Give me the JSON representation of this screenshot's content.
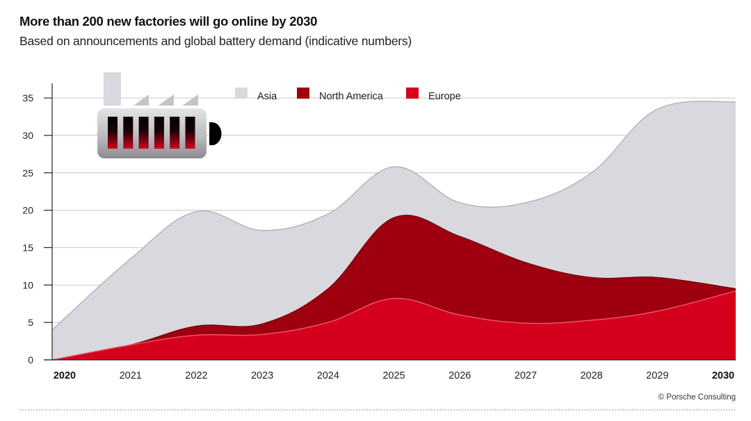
{
  "header": {
    "title": "More than 200 new factories will go online by 2030",
    "subtitle": "Based on announcements and global battery demand (indicative numbers)"
  },
  "footer": {
    "credit": "© Porsche Consulting"
  },
  "illustration": {
    "icon": "battery-factory-icon"
  },
  "colors": {
    "asia": "#d9d8de",
    "north_america": "#9e0010",
    "europe": "#d5001c",
    "gridline": "#cccccc",
    "axis": "#222222"
  },
  "chart_data": {
    "type": "area",
    "stacked": true,
    "title": "More than 200 new factories will go online by 2030",
    "subtitle": "Based on announcements and global battery demand (indicative numbers)",
    "xlabel": "",
    "ylabel": "",
    "categories": [
      "2020",
      "2021",
      "2022",
      "2023",
      "2024",
      "2025",
      "2026",
      "2027",
      "2028",
      "2029",
      "2030"
    ],
    "bold_categories": [
      "2020",
      "2030"
    ],
    "yticks": [
      0,
      5,
      10,
      15,
      20,
      25,
      30,
      35
    ],
    "ylim": [
      0,
      37
    ],
    "grid": true,
    "legend_position": "top-center",
    "series": [
      {
        "name": "Europe",
        "color": "#d5001c",
        "values": [
          0,
          2,
          3.3,
          3.4,
          5,
          8.2,
          6,
          4.9,
          5.3,
          6.5,
          9.2
        ]
      },
      {
        "name": "North America",
        "color": "#9e0010",
        "values": [
          0,
          0,
          1.2,
          1.4,
          4.5,
          10.8,
          10.5,
          8.1,
          5.7,
          4.5,
          0.3
        ]
      },
      {
        "name": "Asia",
        "color": "#d9d8de",
        "values": [
          4,
          11.5,
          15.3,
          12.5,
          10,
          6.8,
          4.5,
          8,
          14,
          22.5,
          25
        ]
      }
    ],
    "legend": [
      "Asia",
      "North America",
      "Europe"
    ]
  }
}
